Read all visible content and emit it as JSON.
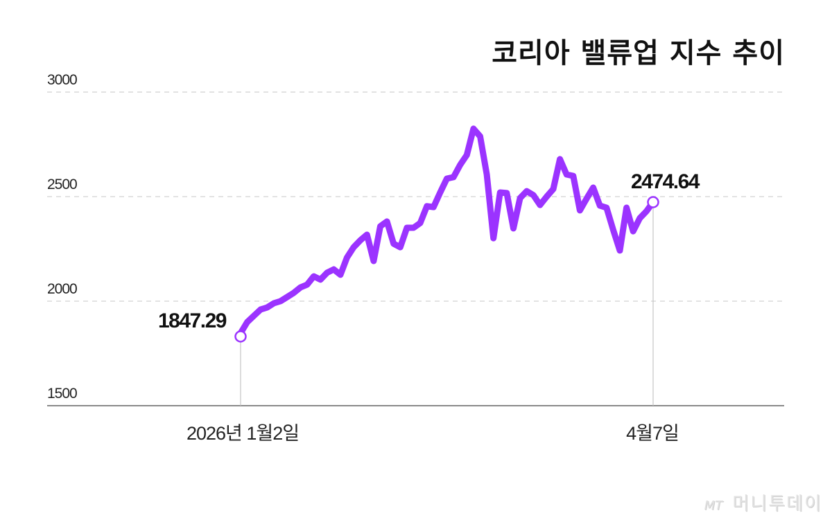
{
  "header": {
    "title": "코리아 밸류업 지수 추이"
  },
  "axes": {
    "y_ticks": [
      "3000",
      "2500",
      "2000",
      "1500"
    ],
    "x_ticks": [
      "2026년 1월2일",
      "4월7일"
    ]
  },
  "callouts": {
    "start": "1847.29",
    "end": "2474.64"
  },
  "watermark": {
    "logo": "MT",
    "brand": "머니투데이"
  },
  "colors": {
    "line": "#9B33FF",
    "grid": "#d9d9d9",
    "axis": "#888888",
    "marker_fill": "#ffffff"
  },
  "chart_data": {
    "type": "line",
    "title": "코리아 밸류업 지수 추이",
    "xlabel": "",
    "ylabel": "",
    "ylim": [
      1500,
      3000
    ],
    "y_ticks": [
      1500,
      2000,
      2500,
      3000
    ],
    "x_tick_labels": [
      "2026년 1월2일",
      "4월7일"
    ],
    "grid": "horizontal dashed",
    "legend": "none",
    "annotations": [
      {
        "label": "1847.29",
        "at": "start (2026년 1월2일)"
      },
      {
        "label": "2474.64",
        "at": "end (4월7일)"
      }
    ],
    "series": [
      {
        "name": "코리아 밸류업 지수",
        "start_label": "2026년 1월2일",
        "end_label": "4월7일",
        "values": [
          1847,
          1900,
          1930,
          1960,
          1970,
          1990,
          2000,
          2020,
          2040,
          2066,
          2079,
          2119,
          2103,
          2136,
          2152,
          2126,
          2209,
          2258,
          2291,
          2318,
          2192,
          2358,
          2381,
          2275,
          2258,
          2351,
          2351,
          2374,
          2454,
          2450,
          2520,
          2586,
          2593,
          2652,
          2699,
          2825,
          2788,
          2606,
          2301,
          2520,
          2517,
          2348,
          2493,
          2526,
          2507,
          2460,
          2500,
          2536,
          2679,
          2606,
          2599,
          2434,
          2490,
          2543,
          2457,
          2447,
          2341,
          2242,
          2447,
          2334,
          2397,
          2430,
          2474.64
        ]
      }
    ],
    "first_value": 1847.29,
    "last_value": 2474.64
  }
}
